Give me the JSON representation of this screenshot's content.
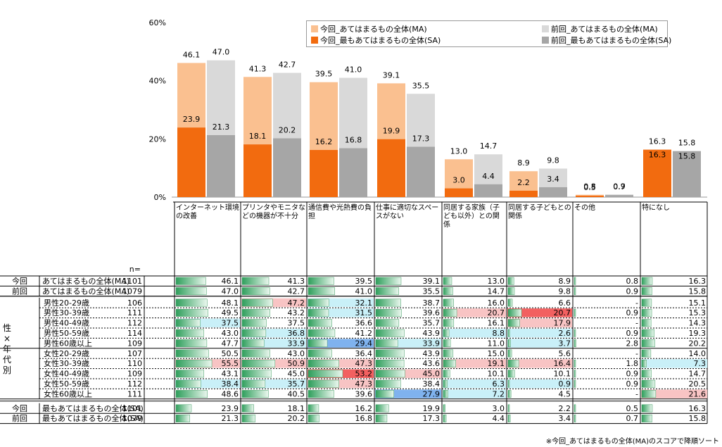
{
  "chart_data": {
    "type": "bar",
    "y_ticks": [
      "0%",
      "20%",
      "40%",
      "60%"
    ],
    "ylim": [
      0,
      60
    ],
    "categories": [
      "インターネット環境の改善",
      "プリンタやモニタなどの機器が不十分",
      "通信費や光熱費の負担",
      "仕事に適切なスペースがない",
      "同居する家族（子ども以外）との関係",
      "同居する子どもとの関係",
      "その他",
      "特になし"
    ],
    "series": [
      {
        "name": "今回_あてはまるもの全体(MA)",
        "values": [
          46.1,
          41.3,
          39.5,
          39.1,
          13.0,
          8.9,
          0.8,
          16.3
        ]
      },
      {
        "name": "前回_あてはまるもの全体(MA)",
        "values": [
          47.0,
          42.7,
          41.0,
          35.5,
          14.7,
          9.8,
          0.9,
          15.8
        ]
      },
      {
        "name": "今回_最もあてはまるもの全体(SA)",
        "values": [
          23.9,
          18.1,
          16.2,
          19.9,
          3.0,
          2.2,
          0.5,
          16.3
        ]
      },
      {
        "name": "前回_最もあてはまるもの全体(SA)",
        "values": [
          21.3,
          20.2,
          16.8,
          17.3,
          4.4,
          3.4,
          0.7,
          15.8
        ]
      }
    ],
    "colors": {
      "ma_now": "#fac090",
      "ma_prev": "#d9d9d9",
      "sa_now": "#f26b0f",
      "sa_prev": "#a6a6a6"
    },
    "n_label": "n=",
    "side_label": [
      "性",
      "×",
      "年",
      "代",
      "別"
    ],
    "rows": [
      {
        "g": "今回",
        "label": "あてはまるもの全体(MA)",
        "n": "1101",
        "v": [
          "46.1",
          "41.3",
          "39.5",
          "39.1",
          "13.0",
          "8.9",
          "0.8",
          "16.3"
        ],
        "hl": [
          "",
          "",
          "",
          "",
          "",
          "",
          "",
          ""
        ]
      },
      {
        "g": "前回",
        "label": "あてはまるもの全体(MA)",
        "n": "1079",
        "v": [
          "47.0",
          "42.7",
          "41.0",
          "35.5",
          "14.7",
          "9.8",
          "0.9",
          "15.8"
        ],
        "hl": [
          "",
          "",
          "",
          "",
          "",
          "",
          "",
          ""
        ]
      },
      {
        "g": "",
        "label": "男性20-29歳",
        "n": "106",
        "v": [
          "48.1",
          "47.2",
          "32.1",
          "38.7",
          "16.0",
          "6.6",
          "-",
          "15.1"
        ],
        "hl": [
          "",
          "r",
          "c",
          "",
          "",
          "",
          "",
          ""
        ]
      },
      {
        "g": "",
        "label": "男性30-39歳",
        "n": "111",
        "v": [
          "49.5",
          "43.2",
          "31.5",
          "39.6",
          "20.7",
          "20.7",
          "0.9",
          "15.3"
        ],
        "hl": [
          "",
          "",
          "c",
          "",
          "r",
          "R",
          "",
          ""
        ]
      },
      {
        "g": "",
        "label": "男性40-49歳",
        "n": "112",
        "v": [
          "37.5",
          "37.5",
          "36.6",
          "35.7",
          "16.1",
          "17.9",
          "-",
          "14.3"
        ],
        "hl": [
          "c",
          "",
          "",
          "",
          "",
          "r",
          "",
          ""
        ]
      },
      {
        "g": "",
        "label": "男性50-59歳",
        "n": "114",
        "v": [
          "43.0",
          "36.8",
          "41.2",
          "43.9",
          "8.8",
          "2.6",
          "0.9",
          "19.3"
        ],
        "hl": [
          "",
          "c",
          "",
          "",
          "c",
          "c",
          "",
          ""
        ]
      },
      {
        "g": "",
        "label": "男性60歳以上",
        "n": "109",
        "v": [
          "47.7",
          "33.9",
          "29.4",
          "33.9",
          "11.0",
          "3.7",
          "2.8",
          "20.2"
        ],
        "hl": [
          "",
          "c",
          "B",
          "c",
          "",
          "c",
          "",
          ""
        ]
      },
      {
        "g": "",
        "label": "女性20-29歳",
        "n": "107",
        "v": [
          "50.5",
          "43.0",
          "36.4",
          "43.9",
          "15.0",
          "5.6",
          "-",
          "14.0"
        ],
        "hl": [
          "",
          "",
          "",
          "",
          "",
          "",
          "",
          ""
        ]
      },
      {
        "g": "",
        "label": "女性30-39歳",
        "n": "110",
        "v": [
          "55.5",
          "50.9",
          "47.3",
          "43.6",
          "19.1",
          "16.4",
          "1.8",
          "7.3"
        ],
        "hl": [
          "r",
          "r",
          "r",
          "",
          "r",
          "r",
          "",
          "c"
        ]
      },
      {
        "g": "",
        "label": "女性40-49歳",
        "n": "109",
        "v": [
          "43.1",
          "45.0",
          "53.2",
          "45.0",
          "10.1",
          "10.1",
          "0.9",
          "14.7"
        ],
        "hl": [
          "",
          "",
          "R",
          "r",
          "",
          "",
          "",
          ""
        ]
      },
      {
        "g": "",
        "label": "女性50-59歳",
        "n": "112",
        "v": [
          "38.4",
          "35.7",
          "47.3",
          "38.4",
          "6.3",
          "0.9",
          "0.9",
          "20.5"
        ],
        "hl": [
          "c",
          "c",
          "r",
          "",
          "c",
          "c",
          "",
          ""
        ]
      },
      {
        "g": "",
        "label": "女性60歳以上",
        "n": "111",
        "v": [
          "48.6",
          "40.5",
          "39.6",
          "27.9",
          "7.2",
          "4.5",
          "-",
          "21.6"
        ],
        "hl": [
          "",
          "",
          "",
          "B",
          "c",
          "",
          "",
          "r"
        ]
      },
      {
        "g": "今回",
        "label": "最もあてはまるもの全体(SA)",
        "n": "1101",
        "v": [
          "23.9",
          "18.1",
          "16.2",
          "19.9",
          "3.0",
          "2.2",
          "0.5",
          "16.3"
        ],
        "hl": [
          "",
          "",
          "",
          "",
          "",
          "",
          "",
          ""
        ]
      },
      {
        "g": "前回",
        "label": "最もあてはまるもの全体(SA)",
        "n": "1079",
        "v": [
          "21.3",
          "20.2",
          "16.8",
          "17.3",
          "4.4",
          "3.4",
          "0.7",
          "15.8"
        ],
        "hl": [
          "",
          "",
          "",
          "",
          "",
          "",
          "",
          ""
        ]
      }
    ]
  },
  "highlight_colors": {
    "r": "#f8c4c4",
    "R": "#f26060",
    "c": "#c9f0f8",
    "B": "#7fb2ee"
  },
  "footnote": "※今回_あてはまるもの全体(MA)のスコアで降順ソート"
}
